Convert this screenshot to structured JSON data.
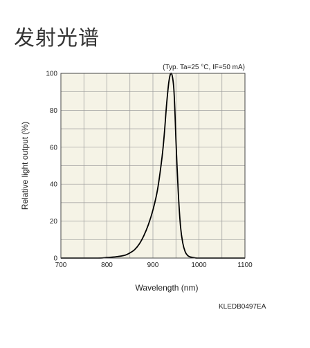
{
  "page": {
    "title": "发射光谱",
    "doc_code": "KLEDB0497EA"
  },
  "colors": {
    "plot_background": "#f5f3e6",
    "grid": "#9a9a9a",
    "curve": "#000000"
  },
  "chart_data": {
    "type": "line",
    "condition_note": "(Typ. Ta=25 °C, IF=50 mA)",
    "xlabel": "Wavelength (nm)",
    "ylabel": "Relative light output (%)",
    "xlim": [
      700,
      1100
    ],
    "ylim": [
      0,
      100
    ],
    "x_ticks": [
      700,
      800,
      900,
      1000,
      1100
    ],
    "y_ticks": [
      0,
      20,
      40,
      60,
      80,
      100
    ],
    "x_minor_step": 50,
    "y_minor_step": 10,
    "grid": true,
    "series": [
      {
        "x": [
          700,
          780,
          800,
          820,
          840,
          850,
          860,
          870,
          880,
          890,
          900,
          910,
          920,
          925,
          930,
          935,
          940,
          945,
          948,
          950,
          955,
          960,
          965,
          970,
          975,
          980,
          990,
          1000,
          1050,
          1100
        ],
        "y": [
          0,
          0,
          0.3,
          0.7,
          1.6,
          2.8,
          4.5,
          7.5,
          12,
          18,
          26,
          37,
          55,
          68,
          84,
          96,
          100,
          93,
          78,
          64,
          36,
          17,
          8,
          3.5,
          1.5,
          0.7,
          0.2,
          0,
          0,
          0
        ]
      }
    ]
  }
}
